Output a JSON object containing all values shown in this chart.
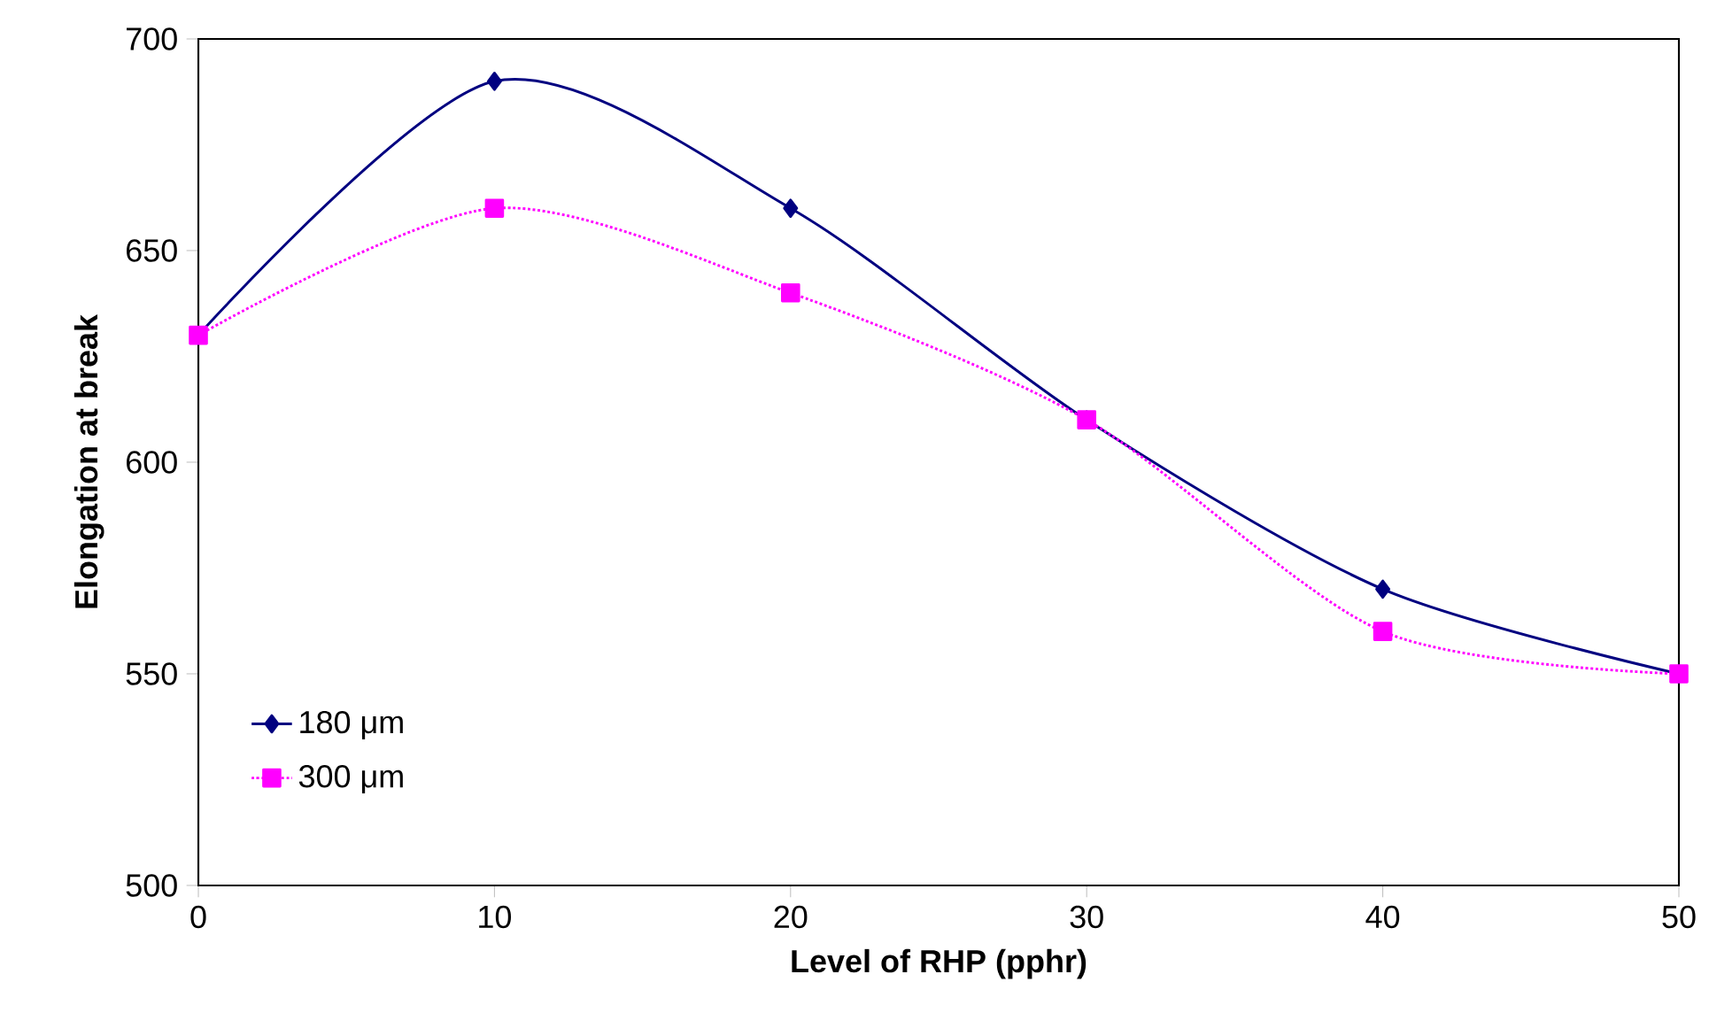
{
  "chart_data": {
    "type": "line",
    "xlabel": "Level of RHP (pphr)",
    "ylabel": "Elongation at break",
    "x": [
      0,
      10,
      20,
      30,
      40,
      50
    ],
    "series": [
      {
        "name": "180 μm",
        "color": "#000080",
        "values": [
          630,
          690,
          660,
          610,
          570,
          550
        ],
        "marker": "diamond",
        "line_style": "solid"
      },
      {
        "name": "300 μm",
        "color": "#ff00ff",
        "values": [
          630,
          660,
          640,
          610,
          560,
          550
        ],
        "marker": "square",
        "line_style": "dotted"
      }
    ],
    "xlim": [
      0,
      50
    ],
    "xticks": [
      0,
      10,
      20,
      30,
      40,
      50
    ],
    "ylim": [
      500,
      700
    ],
    "yticks": [
      500,
      550,
      600,
      650,
      700
    ],
    "grid": false,
    "legend": "bottom left"
  }
}
